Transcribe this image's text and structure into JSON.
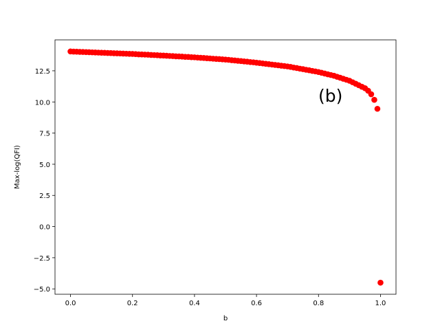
{
  "chart_data": {
    "type": "scatter",
    "xlabel": "b",
    "ylabel": "Max-log(QFI)",
    "annotation": "(b)",
    "color": "#ff0000",
    "x": [
      0.0,
      0.01,
      0.02,
      0.03,
      0.04,
      0.05,
      0.06,
      0.07,
      0.08,
      0.09,
      0.1,
      0.11,
      0.12,
      0.13,
      0.14,
      0.15,
      0.16,
      0.17,
      0.18,
      0.19,
      0.2,
      0.21,
      0.22,
      0.23,
      0.24,
      0.25,
      0.26,
      0.27,
      0.28,
      0.29,
      0.3,
      0.31,
      0.32,
      0.33,
      0.34,
      0.35,
      0.36,
      0.37,
      0.38,
      0.39,
      0.4,
      0.41,
      0.42,
      0.43,
      0.44,
      0.45,
      0.46,
      0.47,
      0.48,
      0.49,
      0.5,
      0.51,
      0.52,
      0.53,
      0.54,
      0.55,
      0.56,
      0.57,
      0.58,
      0.59,
      0.6,
      0.61,
      0.62,
      0.63,
      0.64,
      0.65,
      0.66,
      0.67,
      0.68,
      0.69,
      0.7,
      0.71,
      0.72,
      0.73,
      0.74,
      0.75,
      0.76,
      0.77,
      0.78,
      0.79,
      0.8,
      0.81,
      0.82,
      0.83,
      0.84,
      0.85,
      0.86,
      0.87,
      0.88,
      0.89,
      0.9,
      0.91,
      0.92,
      0.93,
      0.94,
      0.95,
      0.96,
      0.97,
      0.98,
      0.99,
      1.0
    ],
    "values": [
      14.05,
      14.04,
      14.03,
      14.02,
      14.01,
      14.0,
      13.99,
      13.98,
      13.97,
      13.96,
      13.95,
      13.94,
      13.93,
      13.92,
      13.91,
      13.9,
      13.89,
      13.88,
      13.87,
      13.86,
      13.85,
      13.84,
      13.82,
      13.81,
      13.8,
      13.79,
      13.77,
      13.76,
      13.75,
      13.73,
      13.72,
      13.71,
      13.69,
      13.68,
      13.66,
      13.65,
      13.64,
      13.62,
      13.61,
      13.59,
      13.58,
      13.56,
      13.54,
      13.53,
      13.51,
      13.49,
      13.47,
      13.45,
      13.44,
      13.42,
      13.4,
      13.38,
      13.35,
      13.33,
      13.3,
      13.28,
      13.25,
      13.23,
      13.2,
      13.18,
      13.15,
      13.12,
      13.09,
      13.06,
      13.03,
      13.0,
      12.97,
      12.94,
      12.91,
      12.88,
      12.85,
      12.81,
      12.76,
      12.72,
      12.67,
      12.63,
      12.58,
      12.54,
      12.49,
      12.45,
      12.4,
      12.34,
      12.28,
      12.22,
      12.16,
      12.1,
      12.02,
      11.94,
      11.86,
      11.78,
      11.7,
      11.58,
      11.46,
      11.34,
      11.22,
      11.1,
      10.9,
      10.62,
      10.17,
      9.45,
      -4.5
    ],
    "xlim": [
      -0.05,
      1.05
    ],
    "ylim": [
      -5.43,
      14.98
    ],
    "xticks": [
      {
        "value": 0.0,
        "label": "0.0"
      },
      0.2,
      0.4,
      0.6,
      0.8,
      {
        "value": 1.0,
        "label": "1.0"
      }
    ],
    "yticks": [
      {
        "value": -5.0,
        "label": "−5.0"
      },
      {
        "value": -2.5,
        "label": "−2.5"
      },
      {
        "value": 0.0,
        "label": "0.0"
      },
      2.5,
      {
        "value": 5.0,
        "label": "5.0"
      },
      7.5,
      {
        "value": 10.0,
        "label": "10.0"
      },
      12.5
    ]
  }
}
